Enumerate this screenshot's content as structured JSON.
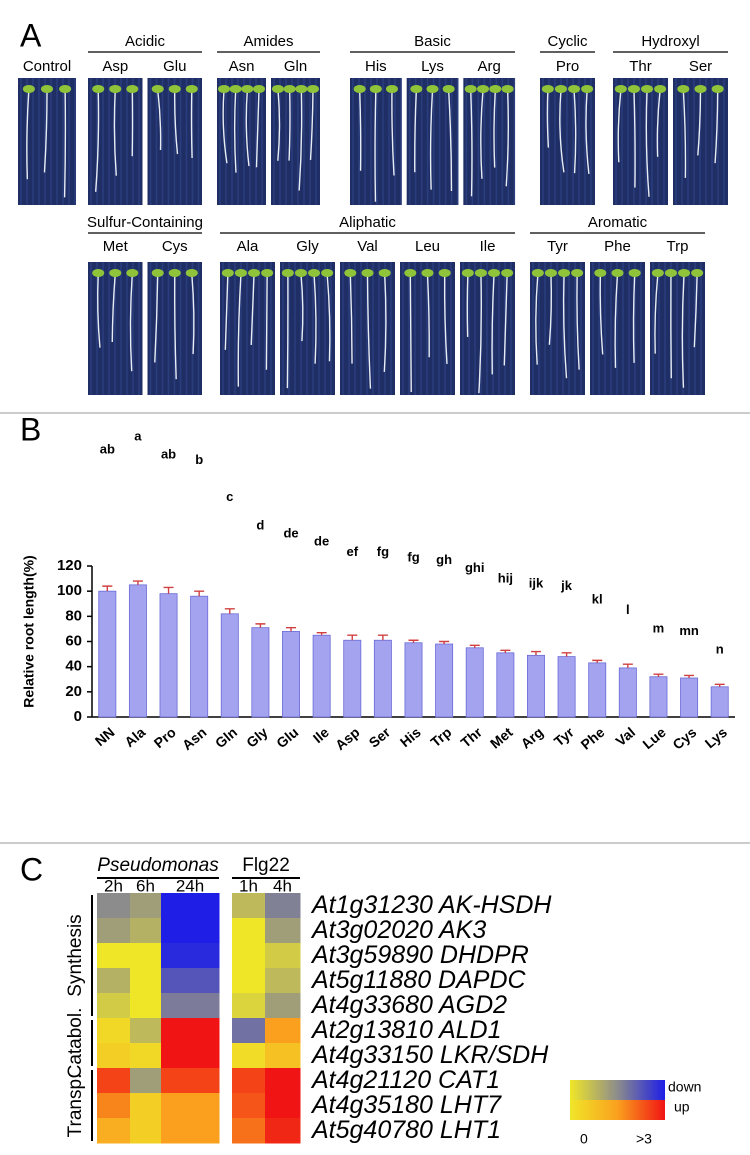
{
  "panel_labels": [
    "A",
    "B",
    "C"
  ],
  "panel_a": {
    "rows": [
      [
        {
          "name": null,
          "members": [
            "Control"
          ]
        },
        {
          "name": "Acidic",
          "members": [
            "Asp",
            "Glu"
          ]
        },
        {
          "name": "Amides",
          "members": [
            "Asn",
            "Gln"
          ]
        },
        {
          "name": "Basic",
          "members": [
            "His",
            "Lys",
            "Arg"
          ]
        },
        {
          "name": "Cyclic",
          "members": [
            "Pro"
          ]
        },
        {
          "name": "Hydroxyl",
          "members": [
            "Thr",
            "Ser"
          ]
        }
      ],
      [
        {
          "name": "Sulfur-Containing",
          "members": [
            "Met",
            "Cys"
          ]
        },
        {
          "name": "Aliphatic",
          "members": [
            "Ala",
            "Gly",
            "Val",
            "Leu",
            "Ile"
          ]
        },
        {
          "name": "Aromatic",
          "members": [
            "Tyr",
            "Phe",
            "Trp"
          ]
        }
      ]
    ]
  },
  "chart_data": {
    "type": "bar",
    "y_label": "Relative root length(%)",
    "categories": [
      "NN",
      "Ala",
      "Pro",
      "Asn",
      "Gln",
      "Gly",
      "Glu",
      "Ile",
      "Asp",
      "Ser",
      "His",
      "Trp",
      "Thr",
      "Met",
      "Arg",
      "Tyr",
      "Phe",
      "Val",
      "Lue",
      "Cys",
      "Lys"
    ],
    "values": [
      100,
      105,
      98,
      96,
      82,
      71,
      68,
      65,
      61,
      61,
      59,
      58,
      55,
      51,
      49,
      48,
      43,
      39,
      32,
      31,
      24
    ],
    "errors": [
      4,
      3,
      5,
      4,
      4,
      3,
      3,
      2,
      4,
      4,
      2,
      2,
      2,
      2,
      3,
      3,
      2,
      3,
      2,
      2,
      2
    ],
    "significance": [
      "ab",
      "a",
      "ab",
      "b",
      "c",
      "d",
      "de",
      "de",
      "ef",
      "fg",
      "fg",
      "gh",
      "ghi",
      "hij",
      "ijk",
      "jk",
      "kl",
      "l",
      "m",
      "mn",
      "n"
    ],
    "color": "#a3a3f0",
    "ylim": [
      0,
      120
    ],
    "yticks": [
      0,
      20,
      40,
      60,
      80,
      100,
      120
    ]
  },
  "heatmap": {
    "column_groups": [
      {
        "name": "Pseudomonas",
        "columns": [
          "2h",
          "6h",
          "24h"
        ]
      },
      {
        "name": "Flg22",
        "columns": [
          "1h",
          "4h"
        ]
      }
    ],
    "row_groups": [
      {
        "name": "Synthesis",
        "genes": [
          {
            "label": "At1g31230 AK-HSDH",
            "values": [
              -1,
              -0.8,
              -3,
              -0.5,
              -1.2
            ]
          },
          {
            "label": "At3g02020 AK3",
            "values": [
              -0.8,
              -0.6,
              -3,
              0,
              -0.8
            ]
          },
          {
            "label": "At3g59890 DHDPR",
            "values": [
              0,
              0,
              -2.8,
              0,
              -0.3
            ]
          },
          {
            "label": "At5g11880 DAPDC",
            "values": [
              -0.6,
              0,
              -2,
              0,
              -0.5
            ]
          },
          {
            "label": "At4g33680 AGD2",
            "values": [
              -0.3,
              0,
              -1.3,
              -0.2,
              -0.8
            ]
          }
        ]
      },
      {
        "name": "Catabol.",
        "genes": [
          {
            "label": "At2g13810 ALD1",
            "values": [
              0.3,
              -0.5,
              3,
              -1.5,
              1.5
            ]
          },
          {
            "label": "At4g33150 LKR/SDH",
            "values": [
              0.5,
              0.3,
              3,
              0.2,
              0.8
            ]
          }
        ]
      },
      {
        "name": "Transp.",
        "genes": [
          {
            "label": "At4g21120 CAT1",
            "values": [
              2.5,
              -0.8,
              2.5,
              2.5,
              3
            ]
          },
          {
            "label": "At4g35180 LHT7",
            "values": [
              1.8,
              0.5,
              1.5,
              2.3,
              3
            ]
          },
          {
            "label": "At5g40780 LHT1",
            "values": [
              1.2,
              0.5,
              1.5,
              2,
              2.8
            ]
          }
        ]
      }
    ],
    "legend": {
      "down": "down",
      "up": "up",
      "low": "0",
      "high": ">3"
    }
  }
}
